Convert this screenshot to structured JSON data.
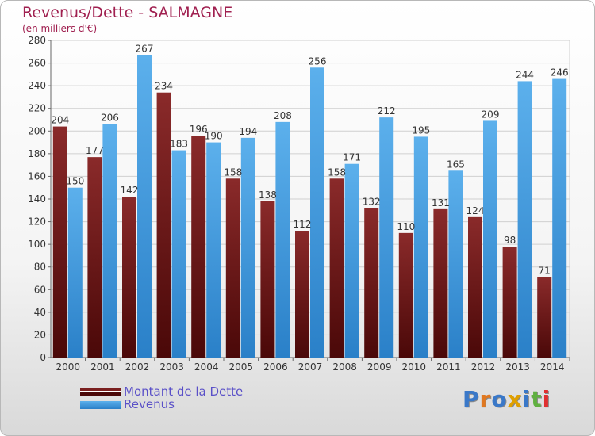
{
  "title": "Revenus/Dette - SALMAGNE",
  "subtitle": "(en milliers d'€)",
  "logo": {
    "text": "Proxiti",
    "colors": [
      "#3a78c8",
      "#e07820",
      "#3a78c8",
      "#e0a000",
      "#3a78c8",
      "#60b040",
      "#e03030"
    ]
  },
  "chart_data": {
    "type": "bar",
    "categories": [
      "2000",
      "2001",
      "2002",
      "2003",
      "2004",
      "2005",
      "2006",
      "2007",
      "2008",
      "2009",
      "2010",
      "2011",
      "2012",
      "2013",
      "2014"
    ],
    "series": [
      {
        "name": "Montant de la Dette",
        "color": "#7a2020",
        "values": [
          204,
          177,
          142,
          234,
          196,
          158,
          138,
          112,
          158,
          132,
          110,
          131,
          124,
          98,
          71
        ]
      },
      {
        "name": "Revenus",
        "color": "#4aa0e0",
        "values": [
          150,
          206,
          267,
          183,
          190,
          194,
          208,
          256,
          171,
          212,
          195,
          165,
          209,
          244,
          246
        ]
      }
    ],
    "ylim": [
      0,
      280
    ],
    "yticks": [
      0,
      20,
      40,
      60,
      80,
      100,
      120,
      140,
      160,
      180,
      200,
      220,
      240,
      260,
      280
    ],
    "grid": true,
    "legend": "bottom-left"
  }
}
